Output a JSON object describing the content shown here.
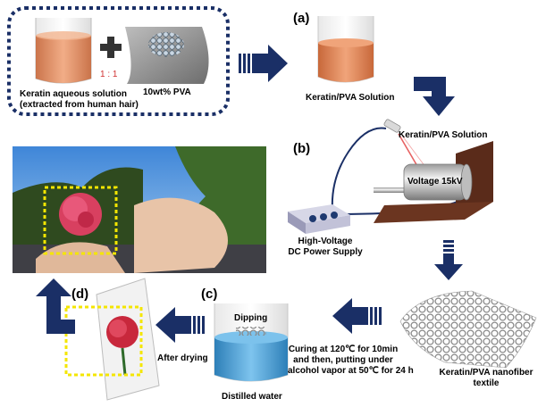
{
  "panels": {
    "a": "(a)",
    "b": "(b)",
    "c": "(c)",
    "d": "(d)"
  },
  "step_a": {
    "keratin_label_line1": "Keratin aqueous solution",
    "keratin_label_line2": "(extracted from human hair)",
    "ratio": "1 : 1",
    "pva_label": "10wt% PVA",
    "mixture_label": "Keratin/PVA Solution"
  },
  "step_b": {
    "syringe_label": "Keratin/PVA Solution",
    "voltage_label": "Voltage 15kV",
    "power_supply_line1": "High-Voltage",
    "power_supply_line2": "DC Power Supply"
  },
  "step_c": {
    "textile_line1": "Keratin/PVA nanofiber",
    "textile_line2": "textile",
    "curing_line1": "Curing at 120℃ for 10min",
    "curing_line2": "and then, putting under",
    "curing_line3": "alcohol vapor at 50℃ for 24 h",
    "dipping_label": "Dipping",
    "water_label": "Distilled water"
  },
  "step_d": {
    "drying_label": "After drying"
  },
  "colors": {
    "arrow": "#1a2f66",
    "dashed_border": "#1a2f66",
    "highlight_dashes": "#f4e600",
    "keratin_fill": "#e0895a",
    "water_fill": "#4aa0d8",
    "ratio_text": "#d03030"
  }
}
